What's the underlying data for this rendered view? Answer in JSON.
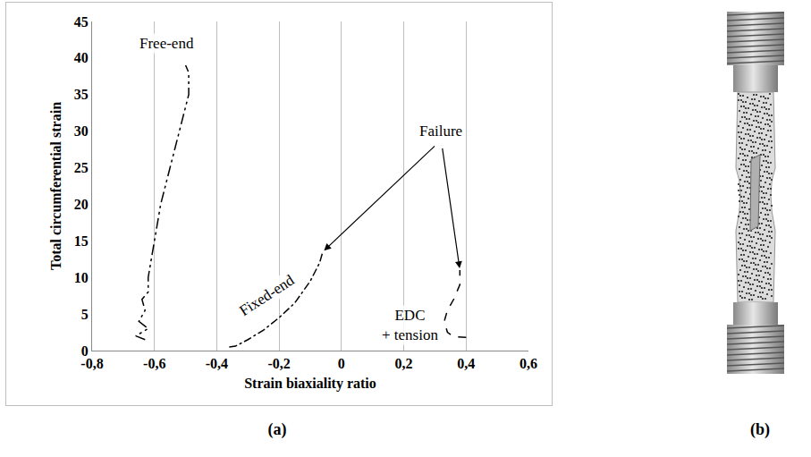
{
  "chart_data": {
    "type": "line",
    "panel_labels": [
      "(a)",
      "(b)"
    ],
    "xaxis_title": "Strain biaxiality ratio",
    "yaxis_title": "Total circumferential strain",
    "xlim": [
      -0.8,
      0.6
    ],
    "xticks": [
      {
        "value": -0.8,
        "label": "-0,8"
      },
      {
        "value": -0.6,
        "label": "-0,6"
      },
      {
        "value": -0.4,
        "label": "-0,4"
      },
      {
        "value": -0.2,
        "label": "-0,2"
      },
      0,
      {
        "value": 0.2,
        "label": "0,2"
      },
      {
        "value": 0.4,
        "label": "0,4"
      },
      {
        "value": 0.6,
        "label": "0,6"
      }
    ],
    "ylim": [
      0,
      45
    ],
    "yticks": [
      0,
      5,
      10,
      15,
      20,
      25,
      30,
      35,
      40,
      45
    ],
    "grid": true,
    "series": [
      {
        "name": "Free-end",
        "color": "#000000",
        "line_style": "dashdotdot",
        "x": [
          -0.63,
          -0.66,
          -0.62,
          -0.65,
          -0.63,
          -0.64,
          -0.62,
          -0.62,
          -0.6,
          -0.58,
          -0.55,
          -0.52,
          -0.49,
          -0.49,
          -0.5
        ],
        "values": [
          1.5,
          2,
          3,
          4,
          5.5,
          7,
          8,
          10,
          15,
          20,
          25,
          30,
          35,
          38,
          39
        ]
      },
      {
        "name": "Fixed-end",
        "color": "#000000",
        "line_style": "dashdot",
        "x": [
          -0.36,
          -0.34,
          -0.3,
          -0.25,
          -0.2,
          -0.15,
          -0.1,
          -0.07,
          -0.06
        ],
        "values": [
          0.5,
          0.6,
          1.5,
          2.8,
          4.5,
          6.5,
          9.5,
          12,
          13.5
        ]
      },
      {
        "name": "EDC + tension",
        "color": "#000000",
        "line_style": "dash",
        "x": [
          0.4,
          0.36,
          0.34,
          0.33,
          0.34,
          0.36,
          0.38,
          0.38
        ],
        "values": [
          1.8,
          1.9,
          2.5,
          4,
          5.5,
          7,
          9,
          11
        ]
      }
    ],
    "annotations": [
      {
        "text": [
          "Free-end"
        ],
        "x": -0.56,
        "y": 42
      },
      {
        "text": [
          "Fixed-end"
        ],
        "x": -0.24,
        "y": 7.5,
        "angle": -33
      },
      {
        "text": [
          "EDC",
          "+ tension"
        ],
        "x": 0.22,
        "y": 3.5
      },
      {
        "text": [
          "Failure"
        ],
        "x": 0.32,
        "y": 30,
        "arrows_to": [
          "Fixed-end",
          "EDC + tension"
        ]
      }
    ]
  }
}
